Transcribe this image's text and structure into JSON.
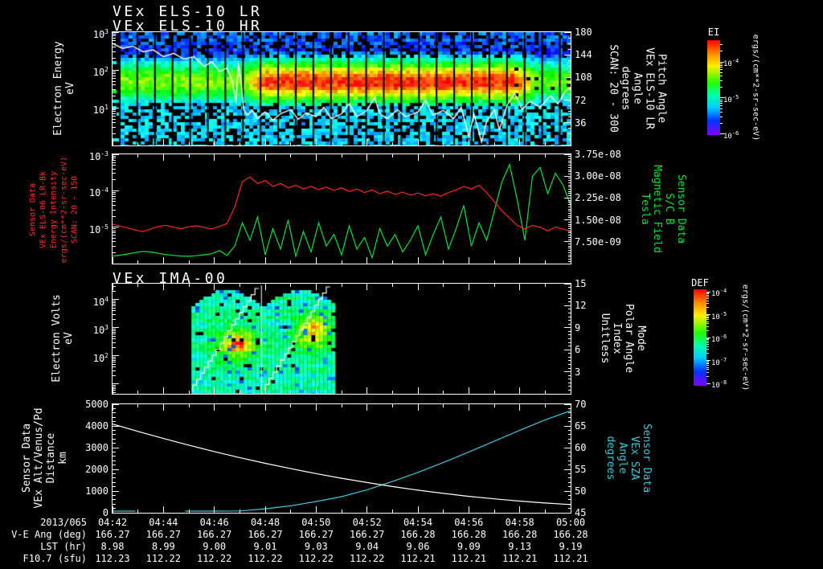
{
  "chart_data": {
    "type": "multi-panel-time-series",
    "instrument_suite": "Venus Express plasma/field summary plot",
    "x_axis": {
      "date": "2013/065",
      "tick_labels": [
        "04:42",
        "04:44",
        "04:46",
        "04:48",
        "04:50",
        "04:52",
        "04:54",
        "04:56",
        "04:58",
        "05:00"
      ],
      "minutes_span": 18,
      "minor_step_min": 1
    },
    "info_rows": [
      {
        "label": "V-E Ang (deg)",
        "values": [
          "166.27",
          "166.27",
          "166.27",
          "166.27",
          "166.27",
          "166.27",
          "166.28",
          "166.28",
          "166.28",
          "166.28"
        ]
      },
      {
        "label": "LST (hr)",
        "values": [
          "8.98",
          "8.99",
          "9.00",
          "9.01",
          "9.03",
          "9.04",
          "9.06",
          "9.09",
          "9.13",
          "9.19"
        ]
      },
      {
        "label": "F10.7 (sfu)",
        "values": [
          "112.23",
          "112.22",
          "112.22",
          "112.22",
          "112.22",
          "112.22",
          "112.21",
          "112.21",
          "112.21",
          "112.21"
        ]
      }
    ],
    "panels": [
      {
        "id": "els-spectrogram",
        "type": "heatmap",
        "titles": [
          "VEx ELS-10 LR",
          "VEx ELS-10 HR"
        ],
        "left_axis": {
          "lines": [
            "Electron Energy",
            "eV"
          ],
          "color": "#ffffff",
          "scale": "log",
          "log_range": [
            0,
            3
          ],
          "ticks": [
            {
              "label": "10^3",
              "log": 3
            },
            {
              "label": "10^2",
              "log": 2
            },
            {
              "label": "10^1",
              "log": 1
            }
          ]
        },
        "right_axis": {
          "lines": [
            "Pitch Angle",
            "VEx ELS-10 LR",
            "Angle",
            "degrees",
            "SCAN: 20 - 300"
          ],
          "color": "#ffffff",
          "scale": "linear",
          "range": [
            0,
            180
          ],
          "ticks": [
            180,
            144,
            108,
            72,
            36
          ],
          "minor_step": 9
        },
        "hot_band": {
          "note": "intense red flux band",
          "t_start_min": 5.3,
          "t_end_min": 16.4,
          "log10_ev_center": 1.7
        },
        "overlay_line": {
          "color": "#ffffff",
          "t_min": [
            0,
            0.4,
            0.8,
            1.2,
            1.6,
            2,
            2.4,
            2.8,
            3.2,
            3.6,
            3.9,
            4.2,
            4.5,
            4.7,
            4.85,
            4.95,
            5.05,
            5.15,
            5.3,
            5.5,
            5.7,
            6,
            6.3,
            6.6,
            7,
            7.3,
            7.6,
            8,
            8.3,
            8.6,
            9,
            9.3,
            9.6,
            10,
            10.3,
            10.5,
            10.8,
            11.2,
            11.5,
            12,
            12.3,
            12.6,
            13,
            13.4,
            13.7,
            14,
            14.2,
            14.5,
            14.7,
            15,
            15.2,
            15.5,
            15.8,
            16.1,
            16.4,
            16.8,
            17.2,
            17.5,
            17.8,
            18
          ],
          "log10_ev": [
            2.7,
            2.57,
            2.63,
            2.48,
            2.53,
            2.35,
            2.44,
            2.29,
            2.35,
            2.09,
            2.22,
            1.96,
            2.05,
            1.71,
            1.17,
            2.14,
            1.71,
            0.95,
            0.8,
            0.93,
            0.71,
            0.89,
            0.67,
            0.84,
            0.95,
            0.69,
            0.86,
            0.76,
            1.01,
            0.71,
            0.84,
            1.1,
            0.76,
            0.93,
            1.27,
            0.84,
            0.71,
            0.95,
            0.76,
            0.89,
            1.19,
            0.8,
            0.93,
            0.71,
            1.01,
            0.24,
            0.84,
            0.09,
            0.63,
            0.95,
            0.41,
            1.06,
            1.38,
            0.95,
            1.17,
            1.01,
            1.32,
            1.1,
            1.45,
            1.53
          ]
        }
      },
      {
        "id": "els-intensity-and-bfield",
        "type": "line",
        "left_axis": {
          "lines": [
            "Sensor Data",
            "VEx ELS-06 LR-Bk",
            "Energy Intensity",
            "ergs/(cm**2-sr-sec-eV)",
            "SCAN: 20 - 150"
          ],
          "color": "#ff3030",
          "scale": "log",
          "log_range": [
            -6,
            -3
          ],
          "ticks": [
            {
              "label": "10^-3",
              "log": -3
            },
            {
              "label": "10^-4",
              "log": -4
            },
            {
              "label": "10^-5",
              "log": -5
            }
          ]
        },
        "right_axis": {
          "lines": [
            "Sensor Data",
            "S/C B",
            "Magnetic Field",
            "Tesla"
          ],
          "color": "#00e636",
          "scale": "linear",
          "range": [
            0,
            3.75e-08
          ],
          "ticks": [
            {
              "label": "3.75e-08",
              "v": 3.75e-08
            },
            {
              "label": "3.00e-08",
              "v": 3e-08
            },
            {
              "label": "2.25e-08",
              "v": 2.25e-08
            },
            {
              "label": "1.50e-08",
              "v": 1.5e-08
            },
            {
              "label": "7.50e-09",
              "v": 7.5e-09
            }
          ],
          "minor_step": 7.5e-10
        },
        "series": [
          {
            "name": "energy-intensity",
            "color": "#ff2424",
            "axis": "left",
            "t_start_min": 0,
            "t_step_min": 0.3,
            "log10_values": [
              -4.92,
              -4.97,
              -5.02,
              -5.08,
              -5.12,
              -5.05,
              -4.98,
              -4.95,
              -5.0,
              -5.04,
              -4.99,
              -4.96,
              -5.01,
              -5.05,
              -4.98,
              -4.9,
              -4.45,
              -3.75,
              -3.62,
              -3.8,
              -3.72,
              -3.88,
              -3.8,
              -3.92,
              -3.85,
              -3.95,
              -3.88,
              -3.97,
              -3.9,
              -3.99,
              -3.92,
              -4.02,
              -3.95,
              -4.05,
              -3.98,
              -4.08,
              -4.01,
              -4.1,
              -4.04,
              -4.12,
              -4.06,
              -4.14,
              -4.08,
              -4.15,
              -4.05,
              -3.98,
              -3.88,
              -3.95,
              -3.85,
              -4.05,
              -4.3,
              -4.55,
              -4.75,
              -4.95,
              -5.05,
              -4.95,
              -5.0,
              -5.1,
              -5.0,
              -5.05,
              -5.12
            ]
          },
          {
            "name": "magnetic-field",
            "color": "#00e636",
            "axis": "right",
            "t_start_min": 0,
            "t_step_min": 0.3,
            "values_nT": [
              2.6,
              2.9,
              3.3,
              3.8,
              4.2,
              4.0,
              3.5,
              3.1,
              2.8,
              2.6,
              2.5,
              2.7,
              3.0,
              3.4,
              4.5,
              2.8,
              6,
              14,
              8,
              16,
              3,
              12,
              5,
              15,
              2.5,
              11,
              4,
              14,
              6,
              10,
              3,
              13,
              5,
              9,
              2,
              12,
              6,
              10,
              4,
              8,
              13,
              3,
              10,
              16,
              5,
              12,
              20,
              6,
              14,
              8,
              18,
              28,
              34,
              22,
              8,
              30,
              33,
              24,
              31,
              27,
              20
            ]
          }
        ]
      },
      {
        "id": "ima-spectrogram",
        "type": "heatmap",
        "title": "VEx IMA-00",
        "left_axis": {
          "lines": [
            "Electron Volts",
            "eV"
          ],
          "color": "#ffffff",
          "scale": "log",
          "log_range": [
            0.657,
            4.571
          ],
          "ticks": [
            {
              "label": "10^4",
              "log": 4
            },
            {
              "label": "10^3",
              "log": 3
            },
            {
              "label": "10^2",
              "log": 2
            }
          ]
        },
        "right_axis": {
          "lines": [
            "Mode",
            "Polar Angle",
            "Index",
            "Unitless"
          ],
          "color": "#ffffff",
          "scale": "linear",
          "range": [
            0,
            15
          ],
          "ticks": [
            15,
            12,
            9,
            6,
            3
          ],
          "minor_step": 0.5
        },
        "data_window": {
          "t_start_min": 3.1,
          "t_divider_min": 5.85,
          "t_end_min": 8.75,
          "note": "two dome-shaped measurement blocks with white staircase scan lines"
        }
      },
      {
        "id": "altitude-and-sza",
        "type": "line",
        "left_axis": {
          "lines": [
            "Sensor Data",
            "VEx Alt/Venus/Pd",
            "Distance",
            "km"
          ],
          "color": "#ffffff",
          "scale": "linear",
          "range": [
            0,
            5000
          ],
          "ticks": [
            5000,
            4000,
            3000,
            2000,
            1000,
            0
          ],
          "minor_step": 200
        },
        "right_axis": {
          "lines": [
            "Sensor Data",
            "VEx SZA",
            "Angle",
            "degrees"
          ],
          "color": "#3cc8dc",
          "scale": "linear",
          "range": [
            45,
            70
          ],
          "ticks": [
            70,
            65,
            60,
            55,
            50,
            45
          ],
          "minor_step": 1
        },
        "series": [
          {
            "name": "altitude",
            "color": "#ffffff",
            "axis": "left",
            "t_min": [
              0,
              1,
              2,
              3,
              4,
              5,
              6,
              7,
              8,
              9,
              10,
              11,
              12,
              13,
              14,
              15,
              16,
              17,
              18
            ],
            "values_km": [
              4090,
              3748,
              3423,
              3113,
              2819,
              2541,
              2279,
              2034,
              1803,
              1590,
              1391,
              1209,
              1042,
              892,
              757,
              639,
              536,
              449,
              379
            ]
          },
          {
            "name": "solar-zenith-angle",
            "color": "#3cc8dc",
            "axis": "right",
            "segments": [
              {
                "t_min": [
                  0,
                  0.9
                ],
                "values_deg": [
                  44.8,
                  44.8
                ]
              },
              {
                "t_min": [
                  2.85,
                  4,
                  5,
                  6,
                  7,
                  8,
                  9,
                  10,
                  11,
                  12,
                  13,
                  14,
                  15,
                  16,
                  17,
                  18
                ],
                "values_deg": [
                  44.85,
                  45.1,
                  45.4,
                  45.9,
                  46.6,
                  47.6,
                  48.7,
                  50.3,
                  52.2,
                  54.3,
                  56.6,
                  59.0,
                  61.5,
                  64.0,
                  66.4,
                  68.5
                ]
              }
            ]
          }
        ]
      }
    ],
    "colorbars": [
      {
        "title": "EI",
        "units": "ergs/(cm**2-sr-sec-eV)",
        "tick_labels": [
          "10^-4",
          "10^-5",
          "10^-6"
        ],
        "tick_log": [
          -4,
          -5,
          -6
        ]
      },
      {
        "title": "DEF",
        "units": "ergs/(cm**2-sr-sec-eV)",
        "tick_labels": [
          "10^-4",
          "10^-5",
          "10^-6",
          "10^-7",
          "10^-8"
        ],
        "tick_log": [
          -4,
          -5,
          -6,
          -7,
          -8
        ]
      }
    ]
  }
}
